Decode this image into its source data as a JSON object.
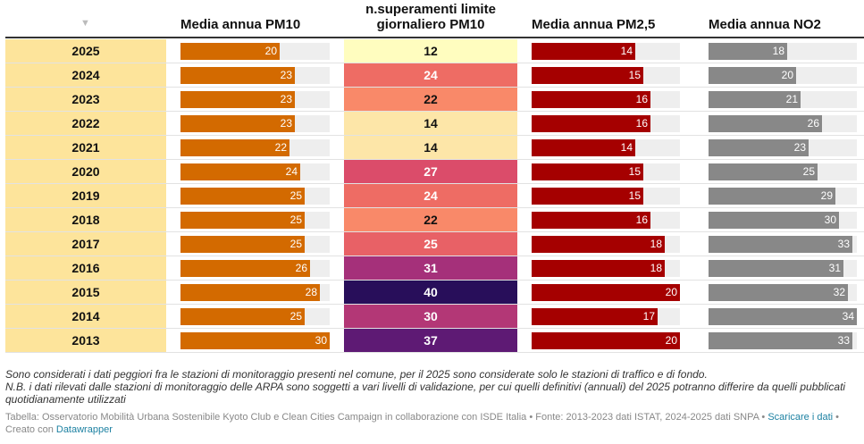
{
  "columns": {
    "year": "",
    "pm10": "Media annua PM10",
    "exceed": "n.superamenti limite giornaliero PM10",
    "pm25": "Media annua PM2,5",
    "no2": "Media annua NO2"
  },
  "chart_data": {
    "type": "table",
    "rows": [
      {
        "year": "2025",
        "pm10": 20,
        "exceed": 12,
        "pm25": 14,
        "no2": 18
      },
      {
        "year": "2024",
        "pm10": 23,
        "exceed": 24,
        "pm25": 15,
        "no2": 20
      },
      {
        "year": "2023",
        "pm10": 23,
        "exceed": 22,
        "pm25": 16,
        "no2": 21
      },
      {
        "year": "2022",
        "pm10": 23,
        "exceed": 14,
        "pm25": 16,
        "no2": 26
      },
      {
        "year": "2021",
        "pm10": 22,
        "exceed": 14,
        "pm25": 14,
        "no2": 23
      },
      {
        "year": "2020",
        "pm10": 24,
        "exceed": 27,
        "pm25": 15,
        "no2": 25
      },
      {
        "year": "2019",
        "pm10": 25,
        "exceed": 24,
        "pm25": 15,
        "no2": 29
      },
      {
        "year": "2018",
        "pm10": 25,
        "exceed": 22,
        "pm25": 16,
        "no2": 30
      },
      {
        "year": "2017",
        "pm10": 25,
        "exceed": 25,
        "pm25": 18,
        "no2": 33
      },
      {
        "year": "2016",
        "pm10": 26,
        "exceed": 31,
        "pm25": 18,
        "no2": 31
      },
      {
        "year": "2015",
        "pm10": 28,
        "exceed": 40,
        "pm25": 20,
        "no2": 32
      },
      {
        "year": "2014",
        "pm10": 25,
        "exceed": 30,
        "pm25": 17,
        "no2": 34
      },
      {
        "year": "2013",
        "pm10": 30,
        "exceed": 37,
        "pm25": 20,
        "no2": 33
      }
    ],
    "bar_max": {
      "pm10": 30,
      "pm25": 20,
      "no2": 34
    },
    "colors": {
      "pm10": "#d36a00",
      "pm25": "#a50000",
      "no2": "#888888",
      "year_bg": "#fde49b",
      "track": "#eeeeee"
    }
  },
  "notes": {
    "line1": "Sono considerati i dati peggiori fra le stazioni di monitoraggio presenti nel comune, per il 2025 sono considerate solo le stazioni di traffico e di fondo.",
    "line2": "N.B. i dati rilevati dalle stazioni di monitoraggio delle ARPA sono soggetti a vari livelli di validazione, per cui quelli definitivi (annuali) del 2025 potranno differire da quelli pubblicati quotidianamente utilizzati"
  },
  "source": {
    "text": "Tabella: Osservatorio Mobilità Urbana Sostenibile Kyoto Club e Clean Cities Campaign in collaborazione con ISDE Italia • Fonte: 2013-2023 dati ISTAT, 2024-2025 dati SNPA • ",
    "download_link": "Scaricare i dati",
    "sep": " • Creato con ",
    "dw_link": "Datawrapper"
  }
}
